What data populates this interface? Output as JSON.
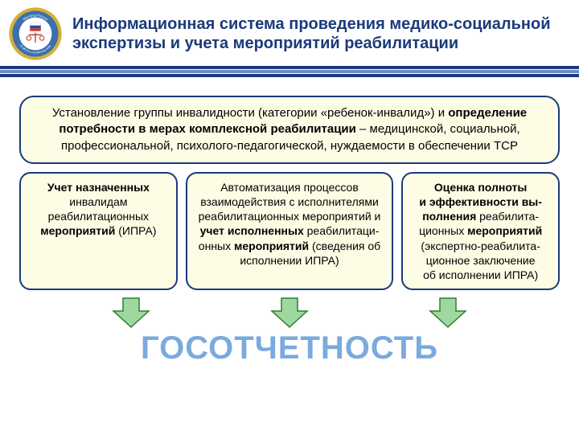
{
  "colors": {
    "title": "#1a3a7a",
    "box_border": "#1a3a7a",
    "box_fill": "#fdfce5",
    "stripe_dark": "#1a3a7a",
    "stripe_light": "#6e8cc7",
    "arrow_fill": "#9fd89f",
    "arrow_stroke": "#2e7d32",
    "bigword": "#7aaade",
    "emblem_ring_outer": "#d4af37",
    "emblem_ring_inner": "#3a6fb0",
    "emblem_center": "#ffffff",
    "emblem_flag_red": "#c0392b",
    "emblem_flag_blue": "#2c4a9a"
  },
  "title": "Информационная система проведения медико-социальной экспертизы и учета мероприятий реабилитации",
  "top_box": "Установление группы инвалидности (категории «ребенок-инвалид») и <b>определение потребности в мерах комплексной реабилитации</b> – медицинской, социальной, профессиональной, психолого-педагогической, нуждаемости в обеспечении ТСР",
  "cells": [
    "<b>Учет назначенных</b> инвалидам реабилитационных <b>мероприятий</b> (ИПРА)",
    "Автоматизация процессов взаимодействия с исполнителями реабилита­ционных мероприятий и <b>учет исполненных</b> реабилитаци­онных <b>мероприятий</b> (сведе­ния об исполнении ИПРА)",
    "<b>Оценка полноты и&nbsp;эффективности вы­полнения</b> реабилита­ционных <b>мероприятий</b> (экспертно-реабилита­ционное заключение об&nbsp;исполнении ИПРА)"
  ],
  "bigword": "ГОСОТЧЕТНОСТЬ",
  "emblem_top_text": "Минтруд России",
  "emblem_bottom_text": "ГБ МСЭ по Алтайскому краю"
}
